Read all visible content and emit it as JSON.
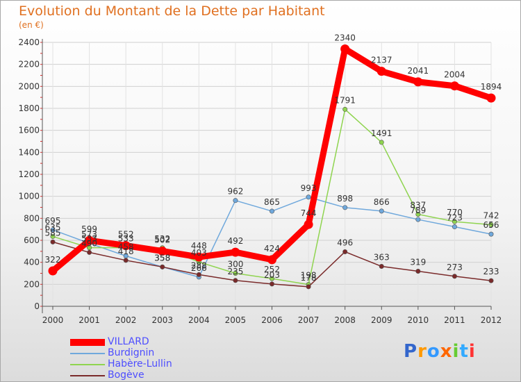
{
  "title": "Evolution du Montant de la Dette par Habitant",
  "subtitle": "(en €)",
  "logo": {
    "text": "Proxiti",
    "letter_colors": [
      "#3366cc",
      "#ff9900",
      "#3399ff",
      "#ff6600",
      "#66cc33",
      "#33aaff",
      "#ff3333"
    ]
  },
  "chart_data": {
    "type": "line",
    "title": "Evolution du Montant de la Dette par Habitant",
    "subtitle": "(en €)",
    "xlabel": "",
    "ylabel": "",
    "ylim": [
      0,
      2400
    ],
    "y_ticks": [
      0,
      200,
      400,
      600,
      800,
      1000,
      1200,
      1400,
      1600,
      1800,
      2000,
      2200,
      2400
    ],
    "grid": true,
    "legend": "bottom-left",
    "x": [
      "2000",
      "2001",
      "2002",
      "2003",
      "2004",
      "2005",
      "2006",
      "2007",
      "2008",
      "2009",
      "2010",
      "2011",
      "2012"
    ],
    "series": [
      {
        "name": "VILLARD",
        "color": "#ff0000",
        "values": [
          322,
          599,
          552,
          502,
          448,
          492,
          424,
          744,
          2340,
          2137,
          2041,
          2004,
          1894
        ]
      },
      {
        "name": "Burdignin",
        "color": "#6fa8dc",
        "values": [
          695,
          573,
          458,
          358,
          266,
          962,
          865,
          993,
          898,
          866,
          789,
          723,
          656
        ]
      },
      {
        "name": "Habère-Lullin",
        "color": "#8fd44f",
        "values": [
          635,
          533,
          533,
          532,
          403,
          300,
          252,
          198,
          1791,
          1491,
          837,
          770,
          742
        ]
      },
      {
        "name": "Bogève",
        "color": "#7a2a2a",
        "values": [
          585,
          490,
          418,
          358,
          288,
          235,
          203,
          178,
          496,
          363,
          319,
          273,
          233
        ]
      }
    ]
  }
}
